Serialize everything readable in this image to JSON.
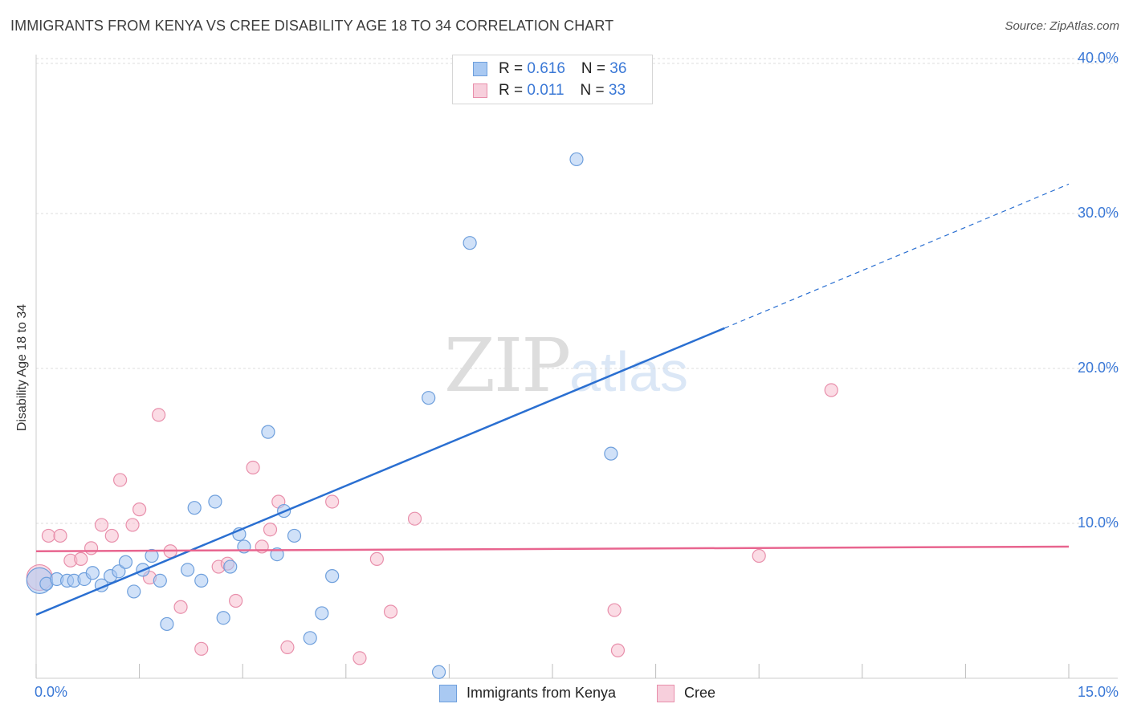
{
  "header": {
    "title": "IMMIGRANTS FROM KENYA VS CREE DISABILITY AGE 18 TO 34 CORRELATION CHART",
    "source": "Source: ZipAtlas.com"
  },
  "watermark": {
    "zip": "ZIP",
    "atlas": "atlas"
  },
  "colors": {
    "blue_fill": "#a9c9f2",
    "blue_stroke": "#6e9fdc",
    "blue_line": "#2a6fd1",
    "pink_fill": "#f7bfd0",
    "pink_stroke": "#e88fab",
    "pink_line": "#e8658f",
    "tick_text": "#3a78d6",
    "grid": "#dcdcdc"
  },
  "legend_top": {
    "rows": [
      {
        "r_label": "R = ",
        "r_value": "0.616",
        "n_label": "N = ",
        "n_value": "36"
      },
      {
        "r_label": "R = ",
        "r_value": "0.011",
        "n_label": "N = ",
        "n_value": "33"
      }
    ]
  },
  "legend_bottom": [
    "Immigrants from Kenya",
    "Cree"
  ],
  "chart_data": {
    "type": "scatter",
    "title": "IMMIGRANTS FROM KENYA VS CREE DISABILITY AGE 18 TO 34 CORRELATION CHART",
    "xlabel": "",
    "ylabel": "Disability Age 18 to 34",
    "xlim": [
      0,
      15
    ],
    "ylim": [
      0,
      40
    ],
    "x_tick_labels": [
      "0.0%",
      "15.0%"
    ],
    "y_ticks": [
      10,
      20,
      30,
      40
    ],
    "y_tick_labels": [
      "10.0%",
      "20.0%",
      "30.0%",
      "40.0%"
    ],
    "grid": true,
    "series": [
      {
        "name": "Immigrants from Kenya",
        "r": 0.616,
        "n": 36,
        "trend": {
          "x0": 0.0,
          "y0": 4.1,
          "x1": 10.0,
          "y1": 22.6,
          "dash_to_x": 15.0,
          "dash_to_y": 31.9
        },
        "points": [
          {
            "x": 0.05,
            "y": 6.3,
            "big": true
          },
          {
            "x": 0.15,
            "y": 6.1
          },
          {
            "x": 0.3,
            "y": 6.4
          },
          {
            "x": 0.45,
            "y": 6.3
          },
          {
            "x": 0.55,
            "y": 6.3
          },
          {
            "x": 0.7,
            "y": 6.4
          },
          {
            "x": 0.82,
            "y": 6.8
          },
          {
            "x": 0.95,
            "y": 6.0
          },
          {
            "x": 1.08,
            "y": 6.6
          },
          {
            "x": 1.2,
            "y": 6.9
          },
          {
            "x": 1.3,
            "y": 7.5
          },
          {
            "x": 1.42,
            "y": 5.6
          },
          {
            "x": 1.55,
            "y": 7.0
          },
          {
            "x": 1.68,
            "y": 7.9
          },
          {
            "x": 1.8,
            "y": 6.3
          },
          {
            "x": 1.9,
            "y": 3.5
          },
          {
            "x": 2.2,
            "y": 7.0
          },
          {
            "x": 2.3,
            "y": 11.0
          },
          {
            "x": 2.4,
            "y": 6.3
          },
          {
            "x": 2.6,
            "y": 11.4
          },
          {
            "x": 2.72,
            "y": 3.9
          },
          {
            "x": 2.82,
            "y": 7.2
          },
          {
            "x": 2.95,
            "y": 9.3
          },
          {
            "x": 3.02,
            "y": 8.5
          },
          {
            "x": 3.37,
            "y": 15.9
          },
          {
            "x": 3.5,
            "y": 8.0
          },
          {
            "x": 3.6,
            "y": 10.8
          },
          {
            "x": 3.75,
            "y": 9.2
          },
          {
            "x": 3.98,
            "y": 2.6
          },
          {
            "x": 4.15,
            "y": 4.2
          },
          {
            "x": 4.3,
            "y": 6.6
          },
          {
            "x": 5.7,
            "y": 18.1
          },
          {
            "x": 5.85,
            "y": 0.4
          },
          {
            "x": 6.3,
            "y": 28.1
          },
          {
            "x": 7.85,
            "y": 33.5
          },
          {
            "x": 8.35,
            "y": 14.5
          }
        ]
      },
      {
        "name": "Cree",
        "r": 0.011,
        "n": 33,
        "trend": {
          "x0": 0.0,
          "y0": 8.2,
          "x1": 15.0,
          "y1": 8.5
        },
        "points": [
          {
            "x": 0.05,
            "y": 6.5,
            "big": true
          },
          {
            "x": 0.18,
            "y": 9.2
          },
          {
            "x": 0.35,
            "y": 9.2
          },
          {
            "x": 0.5,
            "y": 7.6
          },
          {
            "x": 0.65,
            "y": 7.7
          },
          {
            "x": 0.8,
            "y": 8.4
          },
          {
            "x": 0.95,
            "y": 9.9
          },
          {
            "x": 1.1,
            "y": 9.2
          },
          {
            "x": 1.22,
            "y": 12.8
          },
          {
            "x": 1.4,
            "y": 9.9
          },
          {
            "x": 1.5,
            "y": 10.9
          },
          {
            "x": 1.65,
            "y": 6.5
          },
          {
            "x": 1.78,
            "y": 17.0
          },
          {
            "x": 1.95,
            "y": 8.2
          },
          {
            "x": 2.1,
            "y": 4.6
          },
          {
            "x": 2.4,
            "y": 1.9
          },
          {
            "x": 2.65,
            "y": 7.2
          },
          {
            "x": 2.78,
            "y": 7.4
          },
          {
            "x": 2.9,
            "y": 5.0
          },
          {
            "x": 3.15,
            "y": 13.6
          },
          {
            "x": 3.28,
            "y": 8.5
          },
          {
            "x": 3.4,
            "y": 9.6
          },
          {
            "x": 3.52,
            "y": 11.4
          },
          {
            "x": 3.65,
            "y": 2.0
          },
          {
            "x": 4.3,
            "y": 11.4
          },
          {
            "x": 4.7,
            "y": 1.3
          },
          {
            "x": 4.95,
            "y": 7.7
          },
          {
            "x": 5.15,
            "y": 4.3
          },
          {
            "x": 5.5,
            "y": 10.3
          },
          {
            "x": 8.4,
            "y": 4.4
          },
          {
            "x": 8.45,
            "y": 1.8
          },
          {
            "x": 10.5,
            "y": 7.9
          },
          {
            "x": 11.55,
            "y": 18.6
          }
        ]
      }
    ]
  }
}
